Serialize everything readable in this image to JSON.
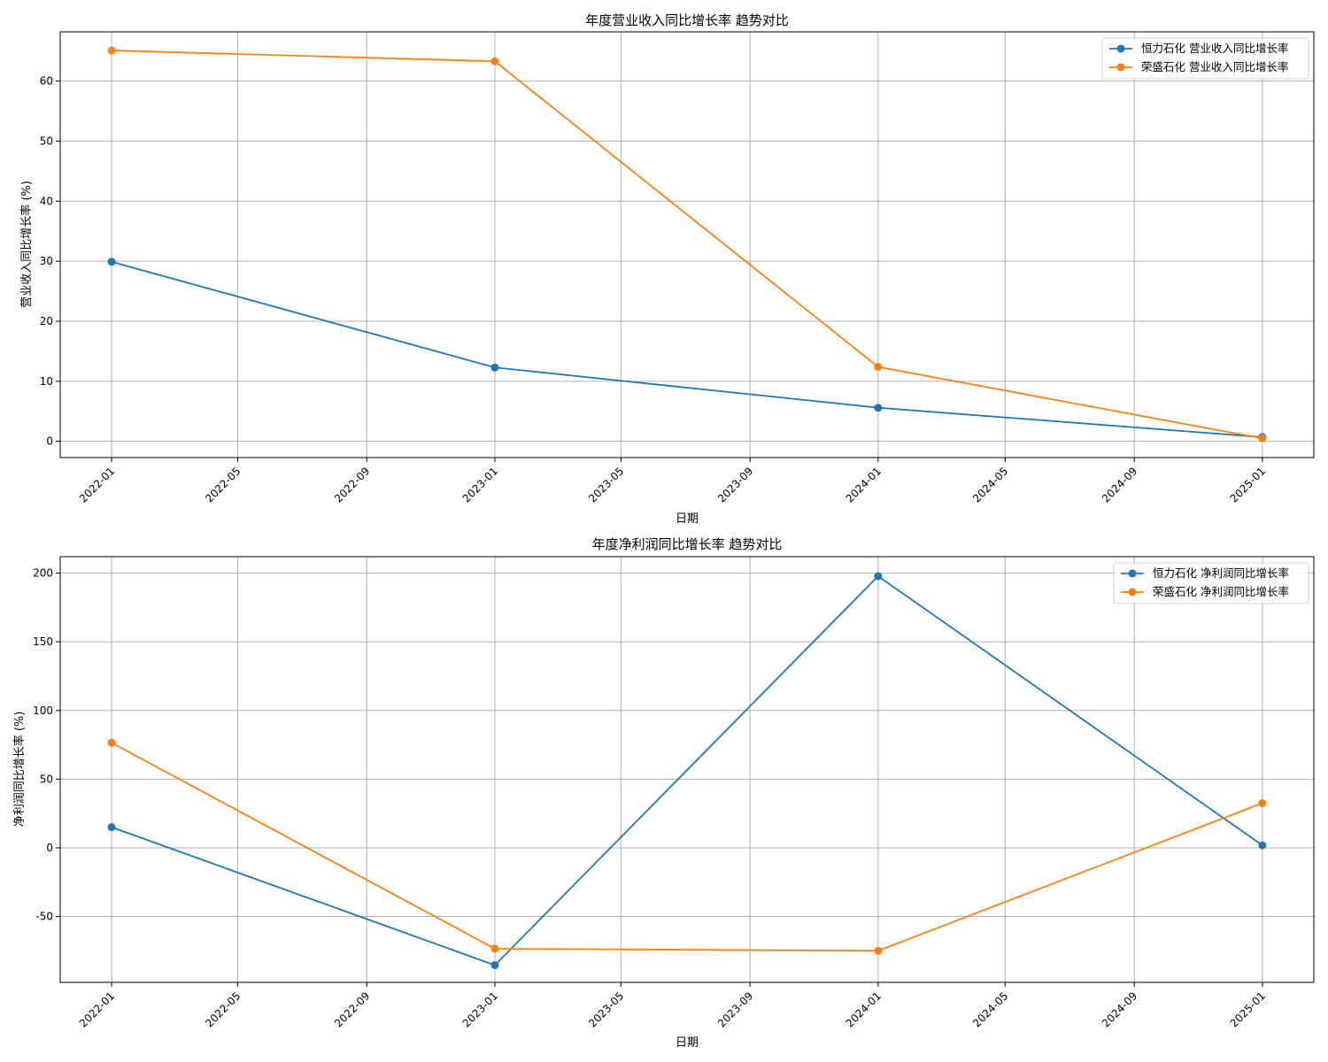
{
  "colors": {
    "series_0": "#1f77b4",
    "series_1": "#ff7f0e",
    "grid": "#b0b0b0"
  },
  "chart_data": [
    {
      "type": "line",
      "title": "年度营业收入同比增长率 趋势对比",
      "xlabel": "日期",
      "ylabel": "营业收入同比增长率 (%)",
      "x": [
        "2022-01-01",
        "2023-01-01",
        "2024-01-01",
        "2025-01-01"
      ],
      "x_ticks": [
        "2022-01",
        "2022-05",
        "2022-09",
        "2023-01",
        "2023-05",
        "2023-09",
        "2024-01",
        "2024-05",
        "2024-09",
        "2025-01"
      ],
      "ylim": [
        -2.7,
        68.2
      ],
      "y_ticks": [
        0,
        10,
        20,
        30,
        40,
        50,
        60
      ],
      "y_tick_labels": [
        "0",
        "10",
        "20",
        "30",
        "40",
        "50",
        "60"
      ],
      "grid": true,
      "legend_position": "top-right",
      "series": [
        {
          "name": "恒力石化 营业收入同比增长率",
          "values": [
            29.9,
            12.3,
            5.6,
            0.7
          ]
        },
        {
          "name": "荣盛石化 营业收入同比增长率",
          "values": [
            65.1,
            63.3,
            12.4,
            0.5
          ]
        }
      ]
    },
    {
      "type": "line",
      "title": "年度净利润同比增长率 趋势对比",
      "xlabel": "日期",
      "ylabel": "净利润同比增长率 (%)",
      "x": [
        "2022-01-01",
        "2023-01-01",
        "2024-01-01",
        "2025-01-01"
      ],
      "x_ticks": [
        "2022-01",
        "2022-05",
        "2022-09",
        "2023-01",
        "2023-05",
        "2023-09",
        "2024-01",
        "2024-05",
        "2024-09",
        "2025-01"
      ],
      "ylim": [
        -98,
        212
      ],
      "y_ticks": [
        -50,
        0,
        50,
        100,
        150,
        200
      ],
      "y_tick_labels": [
        "-50",
        "0",
        "50",
        "100",
        "150",
        "200"
      ],
      "grid": true,
      "legend_position": "top-right",
      "series": [
        {
          "name": "恒力石化 净利润同比增长率",
          "values": [
            15,
            -85.5,
            197.8,
            1.8
          ]
        },
        {
          "name": "荣盛石化 净利润同比增长率",
          "values": [
            76.5,
            -73.5,
            -75,
            32.5
          ]
        }
      ]
    }
  ]
}
